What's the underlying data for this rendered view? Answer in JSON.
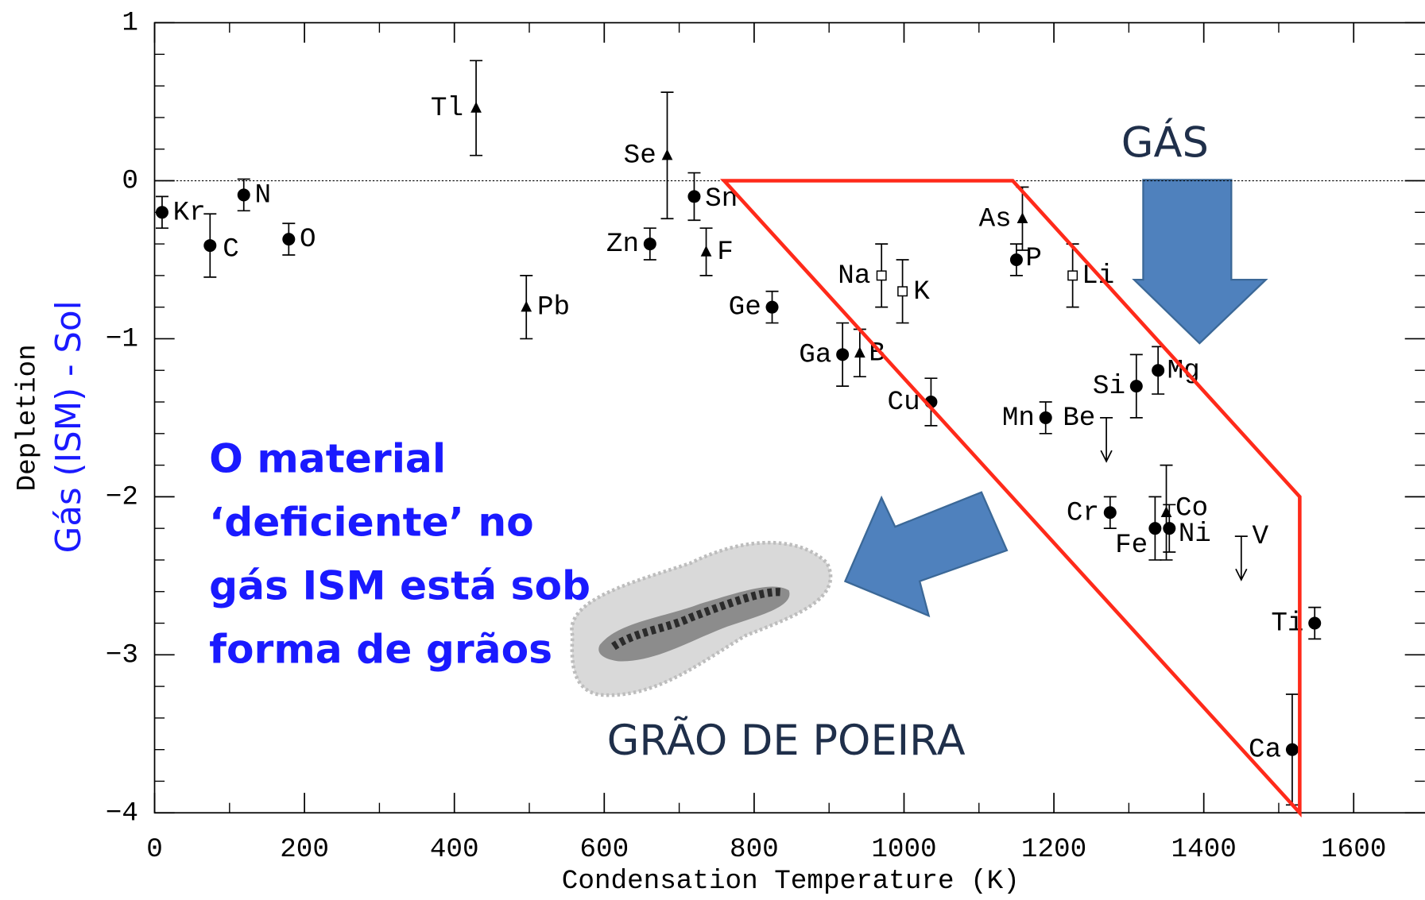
{
  "chart_data": {
    "type": "scatter",
    "xlabel": "Condensation Temperature (K)",
    "ylabel": "Depletion",
    "ylabel2": "Gás (ISM) - Sol",
    "xlim": [
      0,
      1695
    ],
    "ylim": [
      -4,
      1
    ],
    "xticks": [
      0,
      200,
      400,
      600,
      800,
      1000,
      1200,
      1400,
      1600
    ],
    "yticks": [
      1,
      0,
      {
        "value": -1,
        "label": "−1"
      },
      {
        "value": -2,
        "label": "−2"
      },
      {
        "value": -3,
        "label": "−3"
      },
      {
        "value": -4,
        "label": "−4"
      }
    ],
    "reference_line": 0,
    "points": [
      {
        "label": "Kr",
        "x": 10,
        "y": -0.2,
        "err": 0.1,
        "marker": "circle"
      },
      {
        "label": "C",
        "x": 74,
        "y": -0.41,
        "err": 0.2,
        "marker": "circle"
      },
      {
        "label": "N",
        "x": 119,
        "y": -0.09,
        "err": 0.1,
        "marker": "circle"
      },
      {
        "label": "O",
        "x": 179,
        "y": -0.37,
        "err": 0.1,
        "marker": "circle"
      },
      {
        "label": "Tl",
        "x": 429,
        "y": 0.46,
        "err": 0.3,
        "marker": "triangle"
      },
      {
        "label": "Pb",
        "x": 496,
        "y": -0.8,
        "err": 0.2,
        "marker": "triangle"
      },
      {
        "label": "Se",
        "x": 684,
        "y": 0.16,
        "err": 0.4,
        "marker": "triangle"
      },
      {
        "label": "Sn",
        "x": 720,
        "y": -0.1,
        "err": 0.15,
        "marker": "circle"
      },
      {
        "label": "Zn",
        "x": 661,
        "y": -0.4,
        "err": 0.1,
        "marker": "circle"
      },
      {
        "label": "F",
        "x": 736,
        "y": -0.45,
        "err": 0.15,
        "marker": "triangle"
      },
      {
        "label": "Ge",
        "x": 824,
        "y": -0.8,
        "err": 0.1,
        "marker": "circle"
      },
      {
        "label": "Na",
        "x": 970,
        "y": -0.6,
        "err": 0.2,
        "marker": "square"
      },
      {
        "label": "K",
        "x": 998,
        "y": -0.7,
        "err": 0.2,
        "marker": "square"
      },
      {
        "label": "Ga",
        "x": 918,
        "y": -1.1,
        "err": 0.2,
        "marker": "circle"
      },
      {
        "label": "B",
        "x": 941,
        "y": -1.09,
        "err": 0.15,
        "marker": "triangle"
      },
      {
        "label": "Cu",
        "x": 1036,
        "y": -1.4,
        "err": 0.15,
        "marker": "circle"
      },
      {
        "label": "As",
        "x": 1158,
        "y": -0.24,
        "err": 0.2,
        "marker": "triangle"
      },
      {
        "label": "P",
        "x": 1150,
        "y": -0.5,
        "err": 0.1,
        "marker": "circle"
      },
      {
        "label": "Li",
        "x": 1225,
        "y": -0.6,
        "err": 0.2,
        "marker": "square"
      },
      {
        "label": "Si",
        "x": 1310,
        "y": -1.3,
        "err": 0.2,
        "marker": "circle"
      },
      {
        "label": "Mg",
        "x": 1339,
        "y": -1.2,
        "err": 0.15,
        "marker": "circle"
      },
      {
        "label": "Mn",
        "x": 1189,
        "y": -1.5,
        "err": 0.1,
        "marker": "circle"
      },
      {
        "label": "Be",
        "x": 1270,
        "y": -1.5,
        "err": null,
        "marker": "upper_limit"
      },
      {
        "label": "Cr",
        "x": 1275,
        "y": -2.1,
        "err": 0.1,
        "marker": "circle"
      },
      {
        "label": "Fe",
        "x": 1335,
        "y": -2.2,
        "err": 0.2,
        "marker": "circle"
      },
      {
        "label": "Ni",
        "x": 1354,
        "y": -2.2,
        "err": 0.15,
        "marker": "circle"
      },
      {
        "label": "Co",
        "x": 1350,
        "y": -2.1,
        "err": 0.3,
        "marker": "triangle"
      },
      {
        "label": "V",
        "x": 1450,
        "y": -2.25,
        "err": null,
        "marker": "upper_limit"
      },
      {
        "label": "Ti",
        "x": 1548,
        "y": -2.8,
        "err": 0.1,
        "marker": "circle"
      },
      {
        "label": "Ca",
        "x": 1518,
        "y": -3.6,
        "err": 0.35,
        "marker": "circle"
      }
    ],
    "region": {
      "x": [
        760,
        1145,
        1528,
        1528
      ],
      "y": [
        0,
        0,
        -2,
        -4
      ],
      "color": "#ff2a1a"
    },
    "annotations": {
      "gas": "GÁS",
      "grain": "GRÃO DE POEIRA",
      "note": [
        "O material",
        "‘deficiente’ no",
        "gás ISM está sob",
        "forma de grãos"
      ]
    }
  }
}
